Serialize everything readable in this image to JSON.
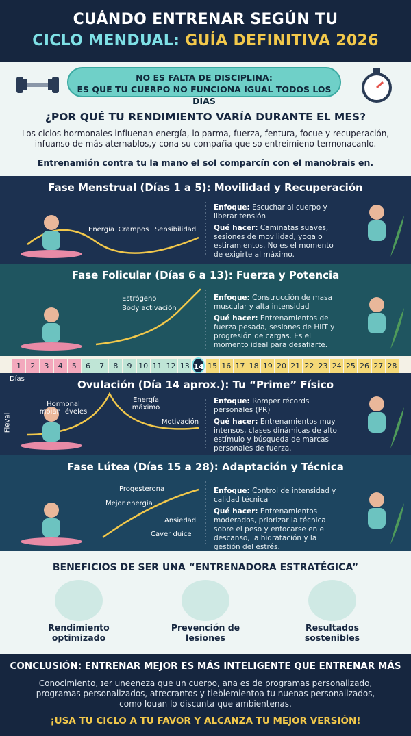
{
  "header": {
    "title_line1": "CUÁNDO ENTRENAR SEGÚN TU",
    "title_line2_a": "CICLO MENDUAL:",
    "title_line2_b": "GUÍA DEFINITIVA 2026"
  },
  "intro": {
    "banner_line1": "NO ES FALTA DE DISCIPLINA:",
    "banner_line2": "ES QUE TU CUERPO NO FUNCIONA IGUAL TODOS LOS DÍAS",
    "heading": "¿POR QUÉ TU RENDIMIENTO VARÍA DURANTE EL MES?",
    "paragraph": "Los ciclos hormonales influenan energía, lo parma, fuerza, fentura, focue y recuperación, infuanso de más aternablos,y cona su compaŕia que so entreimieno termonacanlo.",
    "statement": "Entrenamión contra tu la mano el sol comparcín con el manobrais en."
  },
  "phases": [
    {
      "title": "Fase Menstrual (Días 1 a 5): Movilidad y Recuperación",
      "labels": [
        "Energía",
        "Crampos",
        "Sensibilidad"
      ],
      "focus_label": "Enfoque:",
      "focus_text": "Escuchar al cuerpo y liberar tensión",
      "todo_label": "Qué hacer:",
      "todo_text": "Caminatas suaves, sesiones de movilidad, yoga o estiramientos. No es el momento de exigirte al máximo."
    },
    {
      "title": "Fase Folicular (Días 6 a 13): Fuerza y Potencia",
      "labels": [
        "Estrógeno",
        "Body activación"
      ],
      "focus_label": "Enfoque:",
      "focus_text": "Construcción de masa muscular y alta intensidad",
      "todo_label": "Qué hacer:",
      "todo_text": "Entrenamientos de fuerza pesada, sesiones de HIIT y progresión de cargas. Es el momento ideal para desafiarte."
    },
    {
      "title": "Ovulación (Día 14 aprox.): Tu “Prime” Físico",
      "labels": [
        "Hormonal moian léveles",
        "Energía máximo",
        "Motivación"
      ],
      "focus_label": "Enfoque:",
      "focus_text": "Romper récords personales (PR)",
      "todo_label": "Qué hacer:",
      "todo_text": "Entrenamientos muy intensos, clases dinámicas de alto estímulo y búsqueda de marcas personales de fuerza."
    },
    {
      "title": "Fase Lútea (Días 15 a 28): Adaptación y Técnica",
      "labels": [
        "Progesterona",
        "Mejor energia",
        "Ansiedad",
        "Caver duice"
      ],
      "focus_label": "Enfoque:",
      "focus_text": "Control de intensidad y calidad técnica",
      "todo_label": "Qué hacer:",
      "todo_text": "Entrenamientos moderados, priorizar la técnica sobre el peso y enfocarse en el descanso, la hidratación y la gestión del estrés."
    }
  ],
  "cycle": {
    "days": [
      1,
      2,
      3,
      4,
      5,
      6,
      7,
      8,
      9,
      10,
      11,
      12,
      13,
      14,
      15,
      16,
      17,
      18,
      19,
      20,
      21,
      22,
      23,
      24,
      25,
      26,
      27,
      28
    ],
    "current_day": 14,
    "axis_label": "Días",
    "y_label": "Fleval"
  },
  "benefits": {
    "title": "BENEFICIOS DE SER UNA “ENTRENADORA ESTRATÉGICA”",
    "items": [
      "Rendimiento optimizado",
      "Prevención de lesiones",
      "Resultados sostenibles"
    ]
  },
  "conclusion": {
    "title": "CONCLUSIÓN: ENTRENAR MEJOR ES MÁS INTELIGENTE QUE ENTRENAR MÁS",
    "paragraph": "Conocimiento, ɪer uneeneza que un cuerpo, ana es de programas personalizado, programas personalizados, atrecrantos y tieblemientoa tu nuenas personalizados, como louan lo discunta que ambientenas.",
    "cta": "¡USA TU CICLO A TU FAVOR Y ALCANZA TU MEJOR VERSIÓN!"
  }
}
